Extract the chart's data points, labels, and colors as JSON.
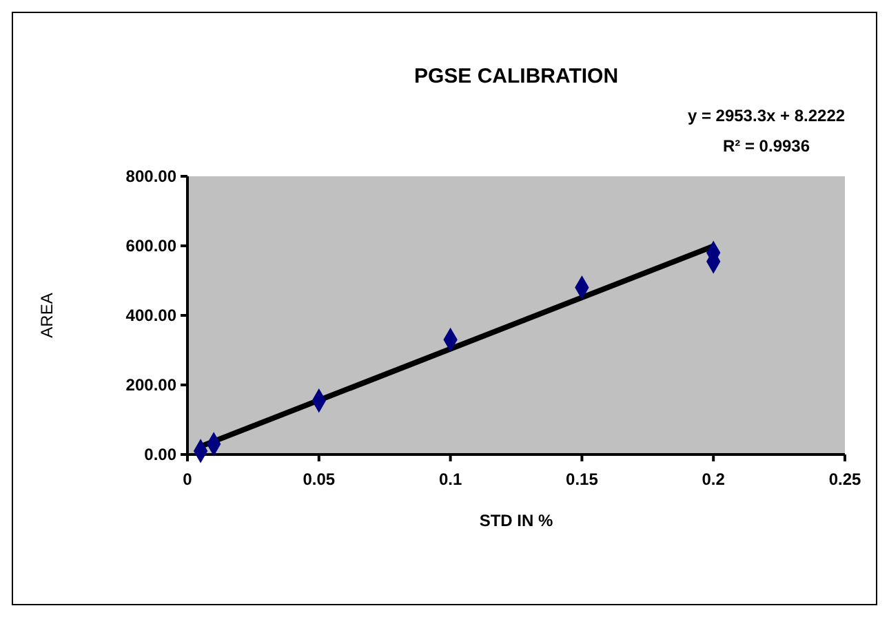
{
  "chart_data": {
    "type": "scatter",
    "title": "PGSE CALIBRATION",
    "xlabel": "STD IN %",
    "ylabel": "AREA",
    "annotations": [
      "y = 2953.3x + 8.2222",
      "R² = 0.9936"
    ],
    "x": [
      0.005,
      0.01,
      0.05,
      0.1,
      0.15,
      0.2,
      0.2
    ],
    "series": [
      {
        "color": "#000080",
        "values": [
          10,
          30,
          155,
          330,
          480,
          580,
          555
        ],
        "marker": "diamond"
      },
      {
        "type": "line",
        "color": "#000000",
        "x": [
          0.005,
          0.2
        ],
        "values": [
          23,
          599
        ]
      }
    ],
    "xlim": [
      0,
      0.25
    ],
    "xticks": [
      0,
      0.05,
      0.1,
      0.15,
      0.2,
      0.25
    ],
    "ylim": [
      0,
      800
    ],
    "yticks": [
      {
        "value": 0,
        "label": "0.00"
      },
      {
        "value": 200,
        "label": "200.00"
      },
      {
        "value": 400,
        "label": "400.00"
      },
      {
        "value": 600,
        "label": "600.00"
      },
      {
        "value": 800,
        "label": "800.00"
      }
    ],
    "legend": false
  }
}
